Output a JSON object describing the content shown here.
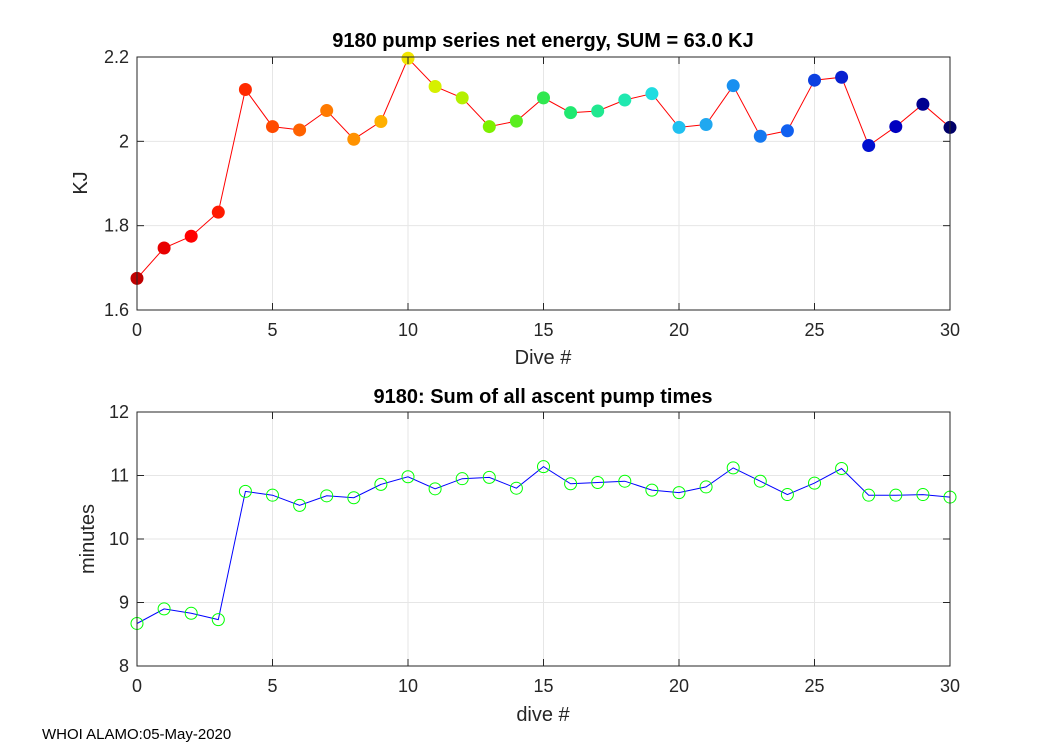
{
  "footer": "WHOI ALAMO:05-May-2020",
  "chart_data": [
    {
      "type": "line",
      "title": "9180 pump series net energy, SUM =  63.0 KJ",
      "xlabel": "Dive #",
      "ylabel": "KJ",
      "xlim": [
        0,
        30
      ],
      "ylim": [
        1.6,
        2.2
      ],
      "xticks": [
        0,
        5,
        10,
        15,
        20,
        25,
        30
      ],
      "yticks": [
        1.6,
        1.8,
        2,
        2.2
      ],
      "yticklabels": [
        "1.6",
        "1.8",
        "2",
        "2.2"
      ],
      "grid": true,
      "line_color": "#ff0000",
      "marker": "filled-circle",
      "x": [
        0,
        1,
        2,
        3,
        4,
        5,
        6,
        7,
        8,
        9,
        10,
        11,
        12,
        13,
        14,
        15,
        16,
        17,
        18,
        19,
        20,
        21,
        22,
        23,
        24,
        25,
        26,
        27,
        28,
        29,
        30
      ],
      "y": [
        1.675,
        1.747,
        1.775,
        1.832,
        2.123,
        2.035,
        2.027,
        2.073,
        2.005,
        2.047,
        2.197,
        2.13,
        2.103,
        2.035,
        2.048,
        2.103,
        2.068,
        2.072,
        2.098,
        2.113,
        2.033,
        2.04,
        2.132,
        2.012,
        2.025,
        2.145,
        2.152,
        1.99,
        2.035,
        2.088,
        2.033
      ],
      "marker_colors": [
        "#c00000",
        "#e80000",
        "#ff0000",
        "#ff1a00",
        "#ff2a00",
        "#ff4a00",
        "#ff6200",
        "#ff7a00",
        "#ff9200",
        "#ffb000",
        "#f2e600",
        "#d6f000",
        "#b4f000",
        "#7ef000",
        "#5aee20",
        "#30e850",
        "#20e870",
        "#20e890",
        "#20e8b0",
        "#20dce0",
        "#20c0f0",
        "#20a8f0",
        "#1890f0",
        "#1478f0",
        "#1060f0",
        "#0c40e0",
        "#0820d0",
        "#0010d0",
        "#0000c0",
        "#000090",
        "#000068"
      ]
    },
    {
      "type": "line",
      "title": "9180: Sum of all ascent pump times",
      "xlabel": "dive #",
      "ylabel": "minutes",
      "xlim": [
        0,
        30
      ],
      "ylim": [
        8,
        12
      ],
      "xticks": [
        0,
        5,
        10,
        15,
        20,
        25,
        30
      ],
      "yticks": [
        8,
        9,
        10,
        11,
        12
      ],
      "yticklabels": [
        "8",
        "9",
        "10",
        "11",
        "12"
      ],
      "grid": true,
      "line_color": "#0000ff",
      "marker": "open-circle",
      "marker_color": "#00ff00",
      "x": [
        0,
        1,
        2,
        3,
        4,
        5,
        6,
        7,
        8,
        9,
        10,
        11,
        12,
        13,
        14,
        15,
        16,
        17,
        18,
        19,
        20,
        21,
        22,
        23,
        24,
        25,
        26,
        27,
        28,
        29,
        30
      ],
      "y": [
        8.67,
        8.9,
        8.83,
        8.73,
        10.75,
        10.69,
        10.53,
        10.68,
        10.65,
        10.86,
        10.98,
        10.79,
        10.95,
        10.97,
        10.8,
        11.14,
        10.87,
        10.89,
        10.91,
        10.77,
        10.73,
        10.82,
        11.12,
        10.91,
        10.7,
        10.88,
        11.11,
        10.69,
        10.69,
        10.7,
        10.66
      ]
    }
  ]
}
